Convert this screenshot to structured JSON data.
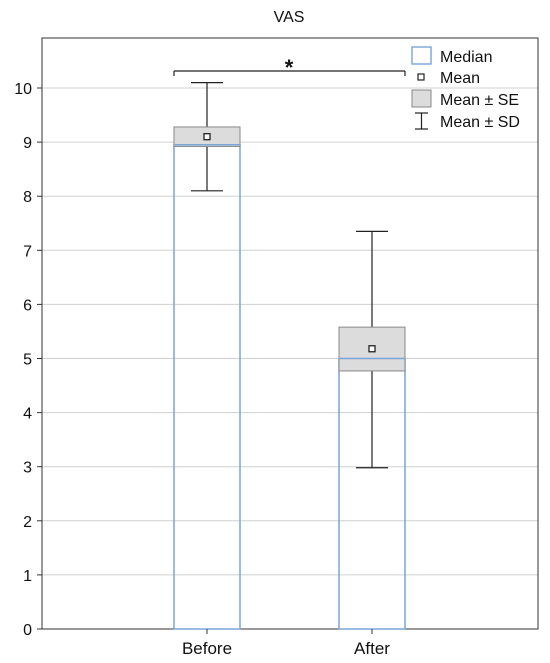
{
  "chart_data": {
    "type": "box",
    "title": "VAS",
    "xlabel": "",
    "ylabel": "",
    "ylim": [
      0,
      11
    ],
    "y_ticks": [
      "0",
      "1",
      "2",
      "3",
      "4",
      "5",
      "6",
      "7",
      "8",
      "9",
      "10"
    ],
    "grid": true,
    "legend_position": "top-right",
    "legend": [
      "Median",
      "Mean",
      "Mean ± SE",
      "Mean ± SD"
    ],
    "categories": [
      "Before",
      "After"
    ],
    "groups": [
      {
        "label": "Before",
        "median": 8.95,
        "mean": 9.1,
        "se_low": 8.92,
        "se_high": 9.28,
        "sd_low": 8.1,
        "sd_high": 10.1
      },
      {
        "label": "After",
        "median": 5.0,
        "mean": 5.18,
        "se_low": 4.77,
        "se_high": 5.58,
        "sd_low": 2.98,
        "sd_high": 7.35
      }
    ],
    "annotation": {
      "text": "*",
      "between": [
        "Before",
        "After"
      ]
    },
    "colors": {
      "median": "#7aa6d8",
      "se_fill": "#dcdcdc",
      "se_stroke": "#888888",
      "grid": "#d0d0d0",
      "axis": "#333333"
    }
  }
}
